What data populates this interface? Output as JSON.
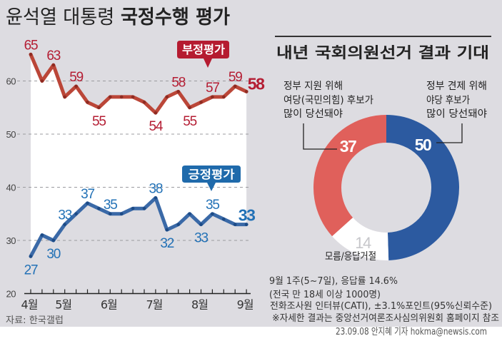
{
  "header": {
    "title_regular": "윤석열 대통령",
    "title_bold": "국정수행 평가"
  },
  "approval_chart": {
    "source": "자료: 한국갤럽",
    "legend": {
      "negative": "부정평가",
      "positive": "긍정평가"
    },
    "legend_colors": {
      "negative": "#b51b30",
      "positive": "#1f6aab"
    }
  },
  "chart_data": [
    {
      "type": "line",
      "title": "윤석열 대통령 국정수행 평가",
      "xlabel": "",
      "ylabel": "",
      "num_points": 20,
      "x_tick_labels": [
        {
          "label": "4월",
          "index": 0
        },
        {
          "label": "5월",
          "index": 3
        },
        {
          "label": "6월",
          "index": 7
        },
        {
          "label": "7월",
          "index": 11
        },
        {
          "label": "8월",
          "index": 15
        },
        {
          "label": "9월",
          "index": 19
        }
      ],
      "ylim": [
        20,
        65
      ],
      "yticks": [
        20,
        30,
        40,
        50,
        60
      ],
      "grid": true,
      "legend": "inline-callouts",
      "series": [
        {
          "name": "부정평가",
          "color": "#bb4638",
          "dot_color": "#8e2b22",
          "label_color": "#b41d33",
          "values": [
            65,
            60,
            63,
            57,
            59,
            56,
            55,
            57,
            57,
            57,
            56,
            54,
            57,
            58,
            55,
            56,
            57,
            57,
            59,
            58
          ],
          "data_labels": [
            {
              "index": 0,
              "pos": "above"
            },
            {
              "index": 2,
              "pos": "above"
            },
            {
              "index": 4,
              "pos": "above"
            },
            {
              "index": 6,
              "pos": "below"
            },
            {
              "index": 11,
              "pos": "below"
            },
            {
              "index": 13,
              "pos": "above"
            },
            {
              "index": 14,
              "pos": "below"
            },
            {
              "index": 16,
              "pos": "above"
            },
            {
              "index": 18,
              "pos": "above"
            },
            {
              "index": 19,
              "pos": "right",
              "emphasis": true
            }
          ]
        },
        {
          "name": "긍정평가",
          "color": "#3a69a7",
          "dot_color": "#1d4b86",
          "label_color": "#2271b6",
          "values": [
            27,
            31,
            30,
            33,
            35,
            37,
            36,
            35,
            35,
            36,
            36,
            38,
            32,
            33,
            35,
            33,
            35,
            34,
            33,
            33
          ],
          "data_labels": [
            {
              "index": 0,
              "pos": "below"
            },
            {
              "index": 2,
              "pos": "below"
            },
            {
              "index": 3,
              "pos": "above"
            },
            {
              "index": 5,
              "pos": "above"
            },
            {
              "index": 7,
              "pos": "above"
            },
            {
              "index": 11,
              "pos": "above"
            },
            {
              "index": 12,
              "pos": "below"
            },
            {
              "index": 15,
              "pos": "below"
            },
            {
              "index": 16,
              "pos": "above"
            },
            {
              "index": 19,
              "pos": "above",
              "emphasis": true
            }
          ]
        }
      ]
    },
    {
      "type": "pie",
      "variant": "donut",
      "title": "내년 국회의원선거 결과 기대",
      "start": "top",
      "direction": "clockwise",
      "slices": [
        {
          "name": "정부 견제 위해 야당 후보가 많이 당선돼야",
          "value": 50,
          "color": "#2c5aa0"
        },
        {
          "name": "모름/응답거절",
          "value": 14,
          "color": "#ffffff"
        },
        {
          "name": "정부 지원 위해 여당(국민의힘) 후보가 많이 당선돼야",
          "value": 37,
          "color": "#e0605b"
        }
      ]
    }
  ],
  "donut_panel": {
    "left_annotation": [
      "정부 지원 위해",
      "여당(국민의힘) 후보가",
      "많이 당선돼야"
    ],
    "right_annotation": [
      "정부 견제 위해",
      "야당 후보가",
      "많이 당선돼야"
    ],
    "no_answer_label": "모름/응답거절"
  },
  "notes": [
    "9월 1주(5~7일), 응답률 14.6%",
    "(전국 만 18세 이상 1000명)",
    "전화조사원 인터뷰(CATI), ±3.1%포인트(95%신뢰수준)",
    "※자세한 결과는 중앙선거여론조사심의위원회 홈페이지 참조"
  ],
  "credit": "23.09.08 안지혜 기자 hokma@newsis.com"
}
